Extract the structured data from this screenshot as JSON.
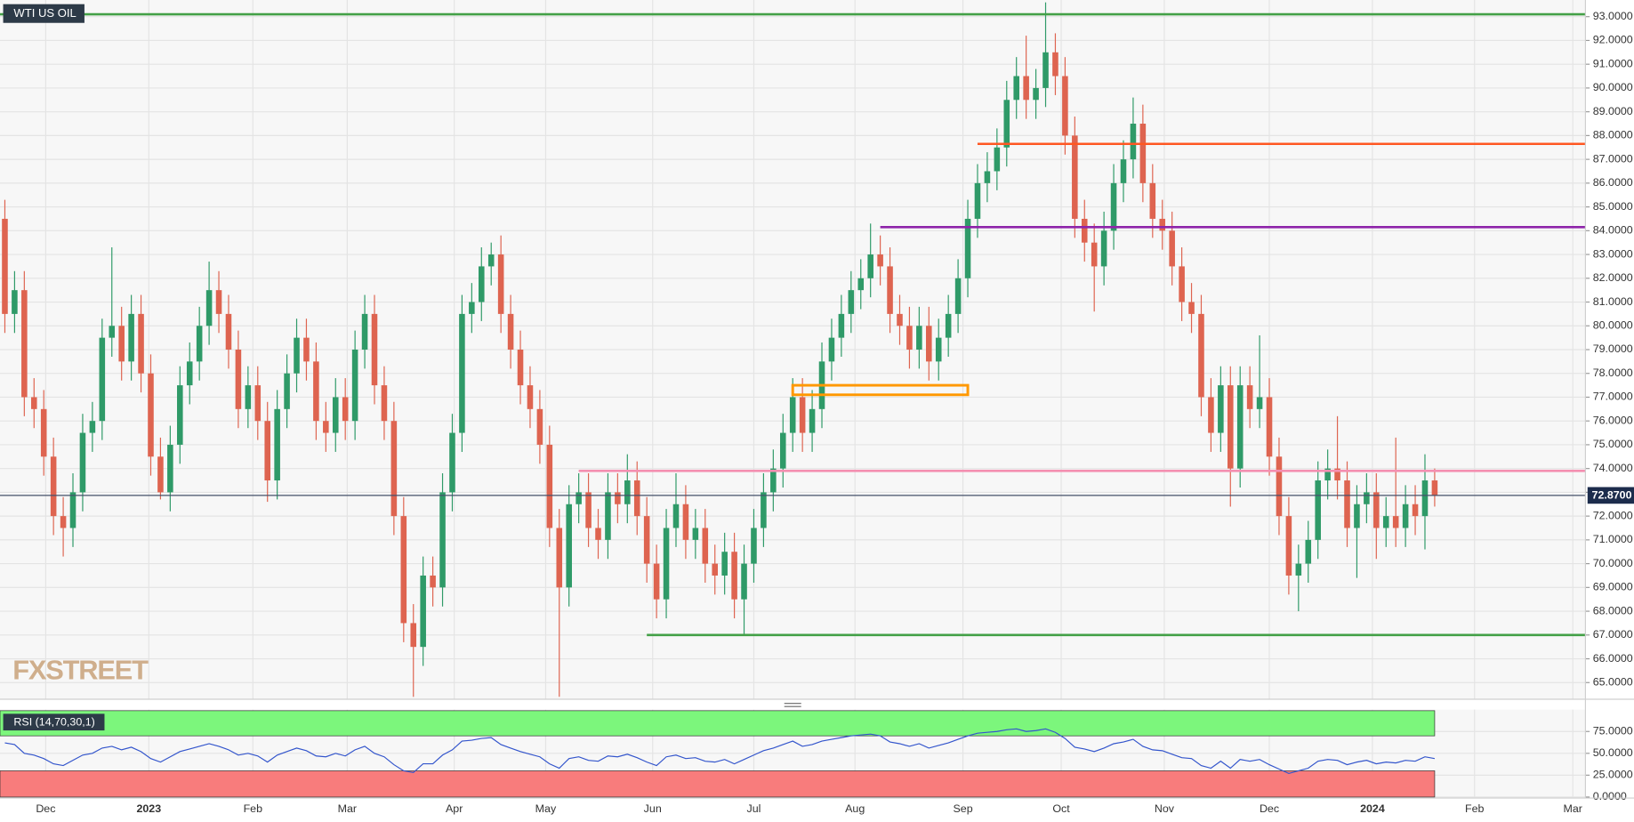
{
  "chart_data": [
    {
      "type": "candlestick",
      "title": "WTI US OIL",
      "watermark": "FXSTREET",
      "open": [
        84.5,
        80.5,
        81.5,
        77.0,
        76.5,
        74.5,
        72.0,
        71.5,
        73.0,
        75.5,
        76.0,
        79.5,
        80.0,
        78.5,
        80.5,
        78.0,
        74.5,
        73.0,
        75.0,
        77.5,
        78.5,
        80.0,
        81.5,
        80.5,
        79.0,
        76.5,
        77.5,
        76.0,
        73.5,
        76.5,
        78.0,
        79.5,
        78.5,
        76.0,
        75.5,
        77.0,
        76.0,
        79.0,
        80.5,
        77.5,
        76.0,
        72.0,
        67.5,
        66.5,
        69.5,
        69.0,
        73.0,
        75.5,
        80.5,
        81.0,
        82.5,
        83.0,
        80.5,
        79.0,
        77.5,
        76.5,
        75.0,
        71.5,
        69.0,
        72.5,
        73.0,
        71.5,
        71.0,
        73.0,
        72.5,
        73.5,
        72.0,
        70.0,
        68.5,
        71.5,
        72.5,
        71.0,
        71.5,
        70.0,
        69.5,
        70.5,
        68.5,
        70.0,
        71.5,
        73.0,
        74.0,
        75.5,
        77.0,
        75.5,
        76.5,
        78.5,
        79.5,
        80.5,
        81.5,
        82.0,
        83.0,
        82.5,
        80.5,
        80.0,
        79.0,
        80.0,
        78.5,
        79.5,
        80.5,
        82.0,
        84.5,
        86.0,
        86.5,
        87.5,
        89.5,
        90.5,
        89.5,
        90.0,
        91.5,
        90.5,
        88.0,
        84.5,
        83.5,
        82.5,
        84.0,
        86.0,
        87.0,
        88.5,
        86.0,
        84.5,
        84.0,
        82.5,
        81.0,
        80.5,
        77.0,
        75.5,
        77.5,
        74.0,
        77.5,
        76.5,
        77.0,
        74.5,
        72.0,
        69.5,
        70.0,
        71.0,
        73.5,
        74.0,
        73.5,
        71.5,
        72.5,
        73.0,
        71.5,
        72.0,
        71.5,
        72.5,
        72.0,
        73.5
      ],
      "high": [
        85.3,
        82.3,
        82.3,
        77.8,
        77.3,
        75.3,
        72.8,
        73.8,
        76.3,
        76.8,
        80.3,
        83.3,
        80.8,
        81.3,
        81.3,
        78.8,
        75.3,
        75.8,
        78.3,
        79.3,
        80.8,
        82.7,
        82.3,
        81.3,
        79.8,
        78.3,
        78.3,
        76.8,
        77.3,
        78.8,
        80.3,
        80.3,
        79.3,
        76.8,
        77.8,
        77.8,
        79.8,
        81.3,
        81.3,
        78.3,
        76.8,
        72.8,
        68.3,
        70.3,
        70.3,
        73.8,
        76.3,
        81.3,
        81.8,
        83.3,
        83.5,
        83.8,
        81.3,
        79.8,
        78.3,
        77.3,
        75.8,
        72.3,
        73.3,
        73.8,
        73.8,
        72.3,
        73.8,
        73.8,
        74.6,
        74.3,
        72.8,
        70.8,
        72.3,
        73.8,
        73.3,
        72.3,
        72.3,
        70.8,
        71.3,
        71.3,
        70.8,
        72.3,
        73.8,
        74.8,
        76.3,
        77.8,
        77.8,
        77.3,
        79.3,
        80.3,
        81.3,
        82.3,
        82.8,
        84.3,
        83.8,
        83.3,
        81.3,
        80.8,
        80.8,
        80.8,
        80.3,
        81.3,
        82.8,
        85.3,
        86.8,
        87.3,
        88.3,
        90.3,
        91.3,
        92.2,
        90.8,
        93.6,
        92.3,
        91.3,
        88.8,
        85.3,
        84.3,
        84.8,
        86.8,
        87.8,
        89.6,
        89.3,
        86.8,
        85.3,
        84.8,
        83.3,
        81.8,
        81.3,
        77.8,
        78.3,
        78.3,
        78.3,
        78.3,
        79.6,
        77.8,
        75.3,
        72.8,
        70.8,
        71.8,
        74.3,
        74.8,
        76.2,
        74.3,
        73.3,
        73.8,
        73.8,
        72.8,
        75.3,
        73.3,
        73.3,
        74.6,
        74.0
      ],
      "low": [
        79.7,
        79.7,
        76.2,
        75.7,
        73.7,
        71.2,
        70.3,
        70.7,
        72.2,
        74.7,
        75.2,
        78.7,
        77.7,
        77.7,
        77.2,
        73.7,
        72.7,
        72.2,
        74.2,
        76.7,
        77.7,
        79.2,
        79.7,
        78.2,
        75.7,
        75.7,
        75.2,
        72.6,
        72.7,
        75.7,
        77.2,
        77.7,
        75.2,
        74.7,
        74.7,
        75.2,
        75.2,
        78.2,
        76.7,
        75.2,
        71.2,
        66.7,
        64.4,
        65.7,
        68.2,
        68.2,
        72.2,
        74.7,
        79.7,
        80.2,
        81.7,
        79.7,
        78.2,
        76.7,
        75.7,
        74.2,
        70.7,
        64.4,
        68.2,
        71.7,
        70.7,
        70.2,
        70.2,
        71.7,
        71.7,
        71.2,
        69.2,
        67.7,
        67.7,
        70.7,
        70.2,
        70.2,
        69.2,
        68.7,
        68.7,
        67.7,
        67.0,
        69.2,
        70.7,
        72.2,
        73.2,
        74.7,
        74.7,
        74.7,
        75.7,
        77.7,
        78.7,
        79.7,
        80.7,
        81.2,
        81.7,
        79.7,
        79.2,
        78.2,
        78.2,
        77.7,
        77.7,
        78.7,
        79.7,
        81.2,
        83.7,
        85.2,
        85.7,
        86.7,
        88.7,
        88.7,
        88.7,
        89.2,
        89.7,
        87.2,
        83.7,
        82.7,
        80.6,
        81.7,
        83.2,
        85.2,
        86.2,
        85.2,
        83.7,
        83.2,
        81.7,
        80.2,
        79.7,
        76.2,
        74.7,
        74.7,
        72.4,
        73.2,
        75.7,
        75.7,
        73.7,
        71.2,
        68.7,
        68.0,
        69.2,
        70.2,
        72.7,
        72.7,
        70.7,
        69.4,
        71.7,
        70.2,
        70.7,
        70.7,
        70.7,
        71.2,
        70.6,
        72.4
      ],
      "close": [
        80.5,
        81.5,
        77.0,
        76.5,
        74.5,
        72.0,
        71.5,
        73.0,
        75.5,
        76.0,
        79.5,
        80.0,
        78.5,
        80.5,
        78.0,
        74.5,
        73.0,
        75.0,
        77.5,
        78.5,
        80.0,
        81.5,
        80.5,
        79.0,
        76.5,
        77.5,
        76.0,
        73.5,
        76.5,
        78.0,
        79.5,
        78.5,
        76.0,
        75.5,
        77.0,
        76.0,
        79.0,
        80.5,
        77.5,
        76.0,
        72.0,
        67.5,
        66.5,
        69.5,
        69.0,
        73.0,
        75.5,
        80.5,
        81.0,
        82.5,
        83.0,
        80.5,
        79.0,
        77.5,
        76.5,
        75.0,
        71.5,
        69.0,
        72.5,
        73.0,
        71.5,
        71.0,
        73.0,
        72.5,
        73.5,
        72.0,
        70.0,
        68.5,
        71.5,
        72.5,
        71.0,
        71.5,
        70.0,
        69.5,
        70.5,
        68.5,
        70.0,
        71.5,
        73.0,
        74.0,
        75.5,
        77.0,
        75.5,
        76.5,
        78.5,
        79.5,
        80.5,
        81.5,
        82.0,
        83.0,
        82.5,
        80.5,
        80.0,
        79.0,
        80.0,
        78.5,
        79.5,
        80.5,
        82.0,
        84.5,
        86.0,
        86.5,
        87.5,
        89.5,
        90.5,
        89.5,
        90.0,
        91.5,
        90.5,
        88.0,
        84.5,
        83.5,
        82.5,
        84.0,
        86.0,
        87.0,
        88.5,
        86.0,
        84.5,
        84.0,
        82.5,
        81.0,
        80.5,
        77.0,
        75.5,
        77.5,
        74.0,
        77.5,
        76.5,
        77.0,
        74.5,
        72.0,
        69.5,
        70.0,
        71.0,
        73.5,
        74.0,
        73.5,
        71.5,
        72.5,
        73.0,
        71.5,
        72.0,
        71.5,
        72.5,
        72.0,
        73.5,
        72.87
      ],
      "up_color": "#2f9a68",
      "down_color": "#de6450",
      "xlim": [
        -0.5,
        162.5
      ],
      "xticks": [
        {
          "value": 4.2,
          "label": "Dec"
        },
        {
          "value": 14.8,
          "label": "2023"
        },
        {
          "value": 25.5,
          "label": "Feb"
        },
        {
          "value": 35.2,
          "label": "Mar"
        },
        {
          "value": 46.2,
          "label": "Apr"
        },
        {
          "value": 55.6,
          "label": "May"
        },
        {
          "value": 66.6,
          "label": "Jun"
        },
        {
          "value": 77,
          "label": "Jul"
        },
        {
          "value": 87.4,
          "label": "Aug"
        },
        {
          "value": 98.5,
          "label": "Sep"
        },
        {
          "value": 108.6,
          "label": "Oct"
        },
        {
          "value": 119.2,
          "label": "Nov"
        },
        {
          "value": 130,
          "label": "Dec"
        },
        {
          "value": 140.6,
          "label": "2024"
        },
        {
          "value": 151.1,
          "label": "Feb"
        },
        {
          "value": 161.2,
          "label": "Mar"
        }
      ],
      "ylim": [
        64.3,
        93.7
      ],
      "yticks": [
        {
          "value": 65,
          "label": "65.0000"
        },
        {
          "value": 66,
          "label": "66.0000"
        },
        {
          "value": 67,
          "label": "67.0000"
        },
        {
          "value": 68,
          "label": "68.0000"
        },
        {
          "value": 69,
          "label": "69.0000"
        },
        {
          "value": 70,
          "label": "70.0000"
        },
        {
          "value": 71,
          "label": "71.0000"
        },
        {
          "value": 72,
          "label": "72.0000"
        },
        {
          "value": 73,
          "label": "73.0000"
        },
        {
          "value": 74,
          "label": "74.0000"
        },
        {
          "value": 75,
          "label": "75.0000"
        },
        {
          "value": 76,
          "label": "76.0000"
        },
        {
          "value": 77,
          "label": "77.0000"
        },
        {
          "value": 78,
          "label": "78.0000"
        },
        {
          "value": 79,
          "label": "79.0000"
        },
        {
          "value": 80,
          "label": "80.0000"
        },
        {
          "value": 81,
          "label": "81.0000"
        },
        {
          "value": 82,
          "label": "82.0000"
        },
        {
          "value": 83,
          "label": "83.0000"
        },
        {
          "value": 84,
          "label": "84.0000"
        },
        {
          "value": 85,
          "label": "85.0000"
        },
        {
          "value": 86,
          "label": "86.0000"
        },
        {
          "value": 87,
          "label": "87.0000"
        },
        {
          "value": 88,
          "label": "88.0000"
        },
        {
          "value": 89,
          "label": "89.0000"
        },
        {
          "value": 90,
          "label": "90.0000"
        },
        {
          "value": 91,
          "label": "91.0000"
        },
        {
          "value": 92,
          "label": "92.0000"
        },
        {
          "value": 93,
          "label": "93.0000"
        }
      ],
      "grid": true,
      "levels": [
        {
          "value": 93.1,
          "color": "#43a047"
        },
        {
          "value": 87.65,
          "color": "#ff5722",
          "start": 100
        },
        {
          "value": 84.15,
          "color": "#8e24aa",
          "start": 90
        },
        {
          "value": 73.9,
          "color": "#f48fb1",
          "start": 59
        },
        {
          "value": 67.0,
          "color": "#43a047",
          "start": 66
        }
      ],
      "zone": {
        "low": 77.1,
        "high": 77.5,
        "start": 81,
        "end": 99,
        "color": "#ff9800"
      },
      "last_price": {
        "value": 72.87,
        "label": "72.8700",
        "color": "#1c2c4c"
      }
    },
    {
      "type": "line",
      "title": "RSI (14,70,30,1)",
      "values": [
        62,
        60,
        50,
        48,
        44,
        38,
        36,
        42,
        48,
        50,
        56,
        58,
        54,
        57,
        52,
        44,
        40,
        46,
        52,
        55,
        58,
        61,
        58,
        54,
        48,
        50,
        47,
        40,
        48,
        52,
        56,
        53,
        47,
        46,
        50,
        47,
        54,
        58,
        50,
        46,
        37,
        30,
        28,
        38,
        38,
        48,
        54,
        64,
        65,
        67,
        68,
        60,
        56,
        52,
        49,
        46,
        38,
        33,
        44,
        46,
        42,
        41,
        47,
        46,
        49,
        45,
        40,
        36,
        46,
        48,
        44,
        45,
        41,
        40,
        43,
        38,
        43,
        48,
        53,
        56,
        60,
        64,
        58,
        60,
        64,
        66,
        68,
        70,
        71,
        72,
        70,
        63,
        61,
        58,
        61,
        56,
        59,
        62,
        66,
        70,
        73,
        74,
        75,
        77,
        78,
        75,
        76,
        78,
        74,
        67,
        57,
        55,
        52,
        56,
        61,
        63,
        66,
        58,
        54,
        53,
        49,
        45,
        44,
        36,
        33,
        41,
        33,
        43,
        41,
        43,
        37,
        32,
        27,
        30,
        33,
        41,
        43,
        42,
        37,
        40,
        42,
        38,
        40,
        39,
        42,
        41,
        46,
        44
      ],
      "color": "#3355cc",
      "ylim": [
        0,
        100
      ],
      "yticks": [
        {
          "value": 0,
          "label": "0.0000"
        },
        {
          "value": 25,
          "label": "25.0000"
        },
        {
          "value": 50,
          "label": "50.0000"
        },
        {
          "value": 75,
          "label": "75.0000"
        }
      ],
      "overbought": 70,
      "oversold": 30,
      "overbought_color": "#7cf67c",
      "oversold_color": "#f87c7c"
    }
  ]
}
